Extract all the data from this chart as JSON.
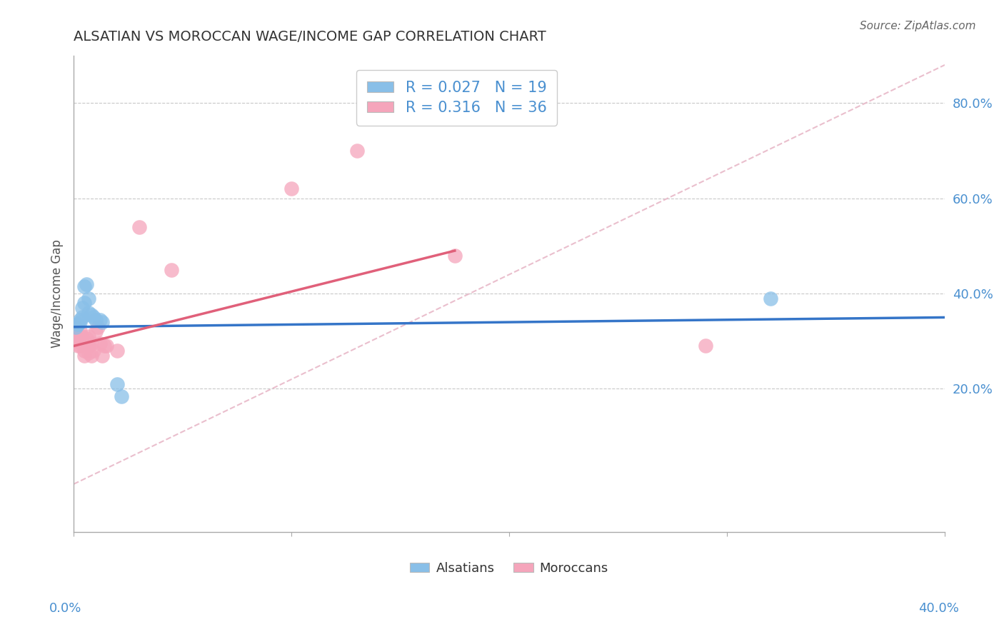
{
  "title": "ALSATIAN VS MOROCCAN WAGE/INCOME GAP CORRELATION CHART",
  "source": "Source: ZipAtlas.com",
  "ylabel": "Wage/Income Gap",
  "xlim": [
    0.0,
    0.4
  ],
  "ylim": [
    -0.1,
    0.9
  ],
  "right_yticks": [
    0.2,
    0.4,
    0.6,
    0.8
  ],
  "right_yticklabels": [
    "20.0%",
    "40.0%",
    "60.0%",
    "80.0%"
  ],
  "alsatian_color": "#89bfe8",
  "moroccan_color": "#f5a5bb",
  "alsatian_line_color": "#3575c8",
  "moroccan_line_color": "#e0607a",
  "diagonal_color": "#e8b8c8",
  "background_color": "#ffffff",
  "grid_color": "#c8c8c8",
  "alsatian_x": [
    0.001,
    0.002,
    0.003,
    0.003,
    0.004,
    0.004,
    0.005,
    0.005,
    0.006,
    0.007,
    0.007,
    0.008,
    0.009,
    0.01,
    0.012,
    0.013,
    0.02,
    0.022,
    0.32
  ],
  "alsatian_y": [
    0.33,
    0.335,
    0.34,
    0.345,
    0.35,
    0.37,
    0.38,
    0.415,
    0.42,
    0.39,
    0.36,
    0.355,
    0.35,
    0.345,
    0.345,
    0.34,
    0.21,
    0.185,
    0.39
  ],
  "moroccan_x": [
    0.001,
    0.001,
    0.002,
    0.002,
    0.002,
    0.003,
    0.003,
    0.003,
    0.003,
    0.004,
    0.004,
    0.004,
    0.005,
    0.005,
    0.005,
    0.006,
    0.006,
    0.007,
    0.007,
    0.007,
    0.008,
    0.008,
    0.009,
    0.01,
    0.011,
    0.012,
    0.013,
    0.014,
    0.015,
    0.02,
    0.03,
    0.045,
    0.1,
    0.13,
    0.175,
    0.29
  ],
  "moroccan_y": [
    0.33,
    0.31,
    0.305,
    0.3,
    0.29,
    0.32,
    0.31,
    0.305,
    0.29,
    0.31,
    0.305,
    0.295,
    0.3,
    0.28,
    0.27,
    0.305,
    0.295,
    0.31,
    0.29,
    0.275,
    0.295,
    0.27,
    0.28,
    0.32,
    0.33,
    0.295,
    0.27,
    0.29,
    0.29,
    0.28,
    0.54,
    0.45,
    0.62,
    0.7,
    0.48,
    0.29
  ],
  "alsatian_line_x0": 0.0,
  "alsatian_line_x1": 0.4,
  "alsatian_line_y0": 0.33,
  "alsatian_line_y1": 0.35,
  "moroccan_line_x0": 0.0,
  "moroccan_line_x1": 0.175,
  "moroccan_line_y0": 0.29,
  "moroccan_line_y1": 0.49
}
